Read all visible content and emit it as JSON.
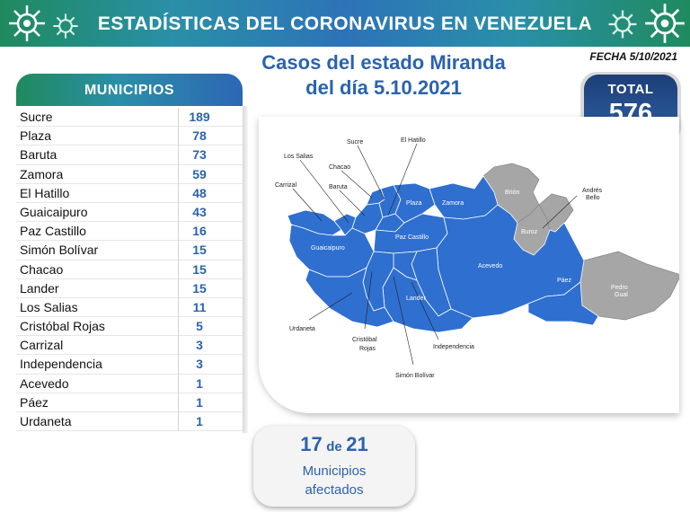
{
  "header": {
    "title": "ESTADÍSTICAS DEL CORONAVIRUS EN VENEZUELA",
    "date": "FECHA 5/10/2021"
  },
  "subtitle": {
    "line1": "Casos del estado Miranda",
    "line2": "del día 5.10.2021"
  },
  "total": {
    "label": "TOTAL",
    "value": "576"
  },
  "municipios": {
    "header": "MUNICIPIOS",
    "rows": [
      {
        "name": "Sucre",
        "value": "189"
      },
      {
        "name": "Plaza",
        "value": "78"
      },
      {
        "name": "Baruta",
        "value": "73"
      },
      {
        "name": "Zamora",
        "value": "59"
      },
      {
        "name": "El Hatillo",
        "value": "48"
      },
      {
        "name": "Guaicaipuro",
        "value": "43"
      },
      {
        "name": "Paz Castillo",
        "value": "16"
      },
      {
        "name": "Simón Bolívar",
        "value": "15"
      },
      {
        "name": "Chacao",
        "value": "15"
      },
      {
        "name": "Lander",
        "value": "15"
      },
      {
        "name": "Los Salias",
        "value": "11"
      },
      {
        "name": "Cristóbal Rojas",
        "value": "5"
      },
      {
        "name": "Carrizal",
        "value": "3"
      },
      {
        "name": "Independencia",
        "value": "3"
      },
      {
        "name": "Acevedo",
        "value": "1"
      },
      {
        "name": "Páez",
        "value": "1"
      },
      {
        "name": "Urdaneta",
        "value": "1"
      }
    ]
  },
  "map": {
    "labels": {
      "sucre": "Sucre",
      "el_hatillo": "El Hatillo",
      "los_salias": "Los Salias",
      "chacao": "Chacao",
      "carrizal": "Carrizal",
      "baruta": "Baruta",
      "plaza": "Plaza",
      "zamora": "Zamora",
      "brion": "Brión",
      "andres_bello_1": "Andrés",
      "andres_bello_2": "Bello",
      "guaicaipuro": "Guaicaipuro",
      "paz_castillo": "Paz Castillo",
      "buroz": "Buroz",
      "acevedo": "Acevedo",
      "paez": "Páez",
      "pedro_gual_1": "Pedro",
      "pedro_gual_2": "Gual",
      "lander": "Lander",
      "urdaneta": "Urdaneta",
      "cristobal_rojas_1": "Cristóbal",
      "cristobal_rojas_2": "Rojas",
      "independencia": "Independencia",
      "simon_bolivar": "Simón Bolívar"
    },
    "colors": {
      "affected": "#2f6fcf",
      "unaffected": "#a6a6a6"
    }
  },
  "afectados": {
    "count": "17",
    "de": "de",
    "total": "21",
    "line1": "Municipios",
    "line2": "afectados"
  },
  "colors": {
    "title_blue": "#2b63ae",
    "banner_green": "#1f8a5e",
    "total_dark": "#1d3f78"
  }
}
